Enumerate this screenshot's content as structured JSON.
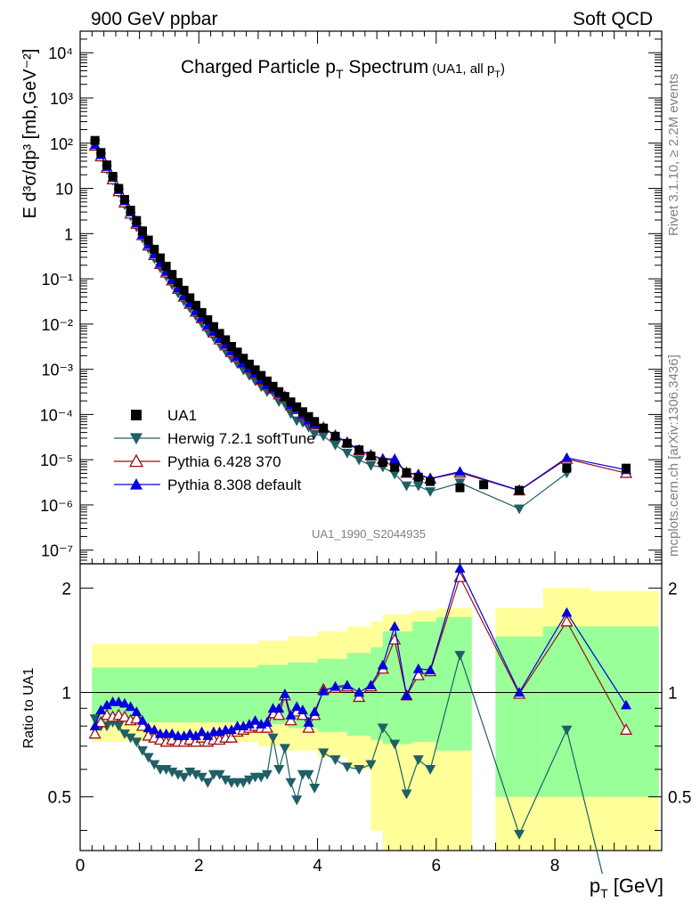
{
  "header": {
    "left": "900 GeV ppbar",
    "right": "Soft QCD"
  },
  "title": {
    "main": "Charged Particle p",
    "main_sub": "T",
    "main_tail": " Spectrum",
    "detail": "(UA1, all p",
    "detail_sub": "T",
    "detail_tail": ")"
  },
  "side_labels": {
    "rivet": "Rivet 3.1.10, ≥ 2.2M events",
    "mcplots": "mcplots.cern.ch [arXiv:1306.3436]"
  },
  "analysis_id": "UA1_1990_S2044935",
  "axes": {
    "y_main_label": "E d³σ/dp³ [mb,GeV⁻²]",
    "y_ratio_label": "Ratio to UA1",
    "x_label": "p_T [GeV]",
    "x_ticks": [
      "0",
      "2",
      "4",
      "6",
      "8"
    ],
    "y_main_ticks": [
      "10⁻⁷",
      "10⁻⁶",
      "10⁻⁵",
      "10⁻⁴",
      "10⁻³",
      "10⁻²",
      "10⁻¹",
      "1",
      "10",
      "10²",
      "10³",
      "10⁴"
    ],
    "y_ratio_ticks": [
      "0.5",
      "1",
      "2"
    ]
  },
  "legend": [
    {
      "label": "UA1",
      "color": "#000000",
      "marker": "square"
    },
    {
      "label": "Herwig 7.2.1 softTune",
      "color": "#1f5f66",
      "marker": "triangle-down"
    },
    {
      "label": "Pythia 6.428 370",
      "color": "#9a1010",
      "marker": "triangle-up-open"
    },
    {
      "label": "Pythia 8.308 default",
      "color": "#0000e0",
      "marker": "triangle-up"
    }
  ],
  "chart_data": {
    "type": "scatter",
    "xlabel": "p_T [GeV]",
    "ylabel": "E d3sigma/dp3 [mb,GeV^-2]",
    "ratio_ylabel": "Ratio to UA1",
    "x_range": [
      0,
      9.8
    ],
    "y_range_log": [
      5e-08,
      30000.0
    ],
    "ratio_range": [
      0.35,
      2.35
    ],
    "log_scale_y": true,
    "legend_position": "lower-left",
    "grid": false,
    "bands": [
      {
        "x0": 0.2,
        "x1": 3.0,
        "yellow": [
          0.72,
          1.38
        ],
        "green": [
          0.82,
          1.18
        ]
      },
      {
        "x0": 3.0,
        "x1": 3.5,
        "yellow": [
          0.7,
          1.41
        ],
        "green": [
          0.81,
          1.2
        ]
      },
      {
        "x0": 3.5,
        "x1": 4.0,
        "yellow": [
          0.68,
          1.45
        ],
        "green": [
          0.79,
          1.22
        ]
      },
      {
        "x0": 4.0,
        "x1": 4.5,
        "yellow": [
          0.65,
          1.5
        ],
        "green": [
          0.77,
          1.25
        ]
      },
      {
        "x0": 4.5,
        "x1": 4.9,
        "yellow": [
          0.6,
          1.55
        ],
        "green": [
          0.75,
          1.3
        ]
      },
      {
        "x0": 4.9,
        "x1": 5.1,
        "yellow": [
          0.4,
          1.6
        ],
        "green": [
          0.73,
          1.35
        ]
      },
      {
        "x0": 5.1,
        "x1": 5.6,
        "yellow": [
          0.3,
          1.68
        ],
        "green": [
          0.71,
          1.5
        ]
      },
      {
        "x0": 5.6,
        "x1": 6.0,
        "yellow": [
          0.35,
          1.72
        ],
        "green": [
          0.72,
          1.6
        ]
      },
      {
        "x0": 6.0,
        "x1": 6.6,
        "yellow": [
          0.3,
          1.75
        ],
        "green": [
          0.68,
          1.65
        ]
      },
      {
        "x0": 7.0,
        "x1": 7.8,
        "yellow": [
          0.3,
          1.75
        ],
        "green": [
          0.5,
          1.45
        ]
      },
      {
        "x0": 7.8,
        "x1": 8.6,
        "yellow": [
          0.3,
          2.0
        ],
        "green": [
          0.5,
          1.55
        ]
      },
      {
        "x0": 8.6,
        "x1": 9.75,
        "yellow": [
          0.3,
          1.96
        ],
        "green": [
          0.5,
          1.55
        ]
      }
    ],
    "ua1": {
      "x": [
        0.25,
        0.35,
        0.45,
        0.55,
        0.65,
        0.75,
        0.85,
        0.95,
        1.05,
        1.15,
        1.25,
        1.35,
        1.45,
        1.55,
        1.65,
        1.75,
        1.85,
        1.95,
        2.05,
        2.15,
        2.25,
        2.35,
        2.45,
        2.55,
        2.65,
        2.75,
        2.85,
        2.95,
        3.05,
        3.15,
        3.25,
        3.35,
        3.45,
        3.55,
        3.65,
        3.75,
        3.85,
        3.95,
        4.1,
        4.3,
        4.5,
        4.7,
        4.9,
        5.1,
        5.3,
        5.5,
        5.7,
        5.9,
        6.4,
        6.8,
        7.4,
        8.2,
        9.2
      ],
      "y": [
        115,
        62,
        33,
        18.5,
        10,
        5.7,
        3.3,
        1.95,
        1.15,
        0.72,
        0.45,
        0.29,
        0.19,
        0.125,
        0.083,
        0.056,
        0.038,
        0.026,
        0.018,
        0.0125,
        0.0088,
        0.0062,
        0.0045,
        0.0032,
        0.0024,
        0.00175,
        0.0013,
        0.00097,
        0.00073,
        0.00055,
        0.00042,
        0.00032,
        0.00025,
        0.00019,
        0.000148,
        0.000115,
        9e-05,
        7e-05,
        5e-05,
        3.3e-05,
        2.3e-05,
        1.65e-05,
        1.2e-05,
        8.7e-06,
        6.8e-06,
        5.2e-06,
        4.1e-06,
        3.3e-06,
        2.4e-06,
        2.8e-06,
        2.1e-06,
        6.5e-06,
        6.5e-06
      ]
    },
    "ua1_error": [
      1.5,
      1.5,
      1.5
    ],
    "series": [
      {
        "name": "Herwig 7.2.1 softTune",
        "ratio_x": [
          0.25,
          0.35,
          0.45,
          0.55,
          0.65,
          0.75,
          0.85,
          0.95,
          1.05,
          1.15,
          1.25,
          1.35,
          1.45,
          1.55,
          1.65,
          1.75,
          1.85,
          1.95,
          2.05,
          2.15,
          2.25,
          2.35,
          2.45,
          2.55,
          2.65,
          2.75,
          2.85,
          2.95,
          3.05,
          3.15,
          3.25,
          3.35,
          3.45,
          3.55,
          3.65,
          3.75,
          3.85,
          3.95,
          4.1,
          4.3,
          4.5,
          4.7,
          4.9,
          5.1,
          5.3,
          5.5,
          5.7,
          5.9,
          6.4,
          7.4,
          8.2,
          8.8
        ],
        "ratio": [
          0.84,
          0.8,
          0.8,
          0.82,
          0.8,
          0.76,
          0.74,
          0.72,
          0.68,
          0.65,
          0.62,
          0.6,
          0.6,
          0.59,
          0.58,
          0.57,
          0.59,
          0.58,
          0.57,
          0.55,
          0.58,
          0.58,
          0.56,
          0.55,
          0.55,
          0.55,
          0.56,
          0.57,
          0.57,
          0.58,
          0.74,
          0.6,
          0.69,
          0.55,
          0.49,
          0.58,
          0.58,
          0.53,
          0.67,
          0.64,
          0.61,
          0.6,
          0.62,
          0.79,
          0.71,
          0.51,
          0.64,
          0.6,
          1.28,
          0.39,
          0.78,
          0.3
        ]
      },
      {
        "name": "Pythia 6.428 370",
        "ratio_x": [
          0.25,
          0.35,
          0.45,
          0.55,
          0.65,
          0.75,
          0.85,
          0.95,
          1.05,
          1.15,
          1.25,
          1.35,
          1.45,
          1.55,
          1.65,
          1.75,
          1.85,
          1.95,
          2.05,
          2.15,
          2.25,
          2.35,
          2.45,
          2.55,
          2.65,
          2.75,
          2.85,
          2.95,
          3.05,
          3.15,
          3.25,
          3.35,
          3.45,
          3.55,
          3.65,
          3.75,
          3.85,
          3.95,
          4.1,
          4.3,
          4.5,
          4.7,
          4.9,
          5.1,
          5.3,
          5.5,
          5.7,
          5.9,
          6.4,
          7.4,
          8.2,
          9.2
        ],
        "ratio": [
          0.76,
          0.82,
          0.86,
          0.85,
          0.86,
          0.85,
          0.83,
          0.84,
          0.8,
          0.75,
          0.74,
          0.73,
          0.72,
          0.73,
          0.72,
          0.72,
          0.73,
          0.72,
          0.74,
          0.72,
          0.73,
          0.73,
          0.74,
          0.74,
          0.77,
          0.78,
          0.79,
          0.8,
          0.79,
          0.79,
          0.87,
          0.86,
          0.98,
          0.83,
          0.88,
          0.86,
          0.79,
          0.86,
          1.02,
          1.03,
          1.04,
          0.97,
          1.04,
          1.17,
          1.42,
          0.98,
          1.12,
          1.15,
          2.15,
          0.99,
          1.6,
          0.78
        ]
      },
      {
        "name": "Pythia 8.308 default",
        "ratio_x": [
          0.25,
          0.35,
          0.45,
          0.55,
          0.65,
          0.75,
          0.85,
          0.95,
          1.05,
          1.15,
          1.25,
          1.35,
          1.45,
          1.55,
          1.65,
          1.75,
          1.85,
          1.95,
          2.05,
          2.15,
          2.25,
          2.35,
          2.45,
          2.55,
          2.65,
          2.75,
          2.85,
          2.95,
          3.05,
          3.15,
          3.25,
          3.35,
          3.45,
          3.55,
          3.65,
          3.75,
          3.85,
          3.95,
          4.1,
          4.3,
          4.5,
          4.7,
          4.9,
          5.1,
          5.3,
          5.5,
          5.7,
          5.9,
          6.4,
          7.4,
          8.2,
          9.2
        ],
        "ratio": [
          0.8,
          0.89,
          0.92,
          0.94,
          0.94,
          0.93,
          0.91,
          0.88,
          0.83,
          0.79,
          0.78,
          0.76,
          0.76,
          0.76,
          0.75,
          0.75,
          0.76,
          0.75,
          0.77,
          0.75,
          0.77,
          0.77,
          0.78,
          0.78,
          0.8,
          0.8,
          0.81,
          0.83,
          0.81,
          0.82,
          0.9,
          0.9,
          0.99,
          0.86,
          0.91,
          0.89,
          0.82,
          0.88,
          1.01,
          1.04,
          1.05,
          1.0,
          1.05,
          1.2,
          1.55,
          0.98,
          1.17,
          1.16,
          2.28,
          1.0,
          1.7,
          0.92
        ]
      }
    ]
  }
}
